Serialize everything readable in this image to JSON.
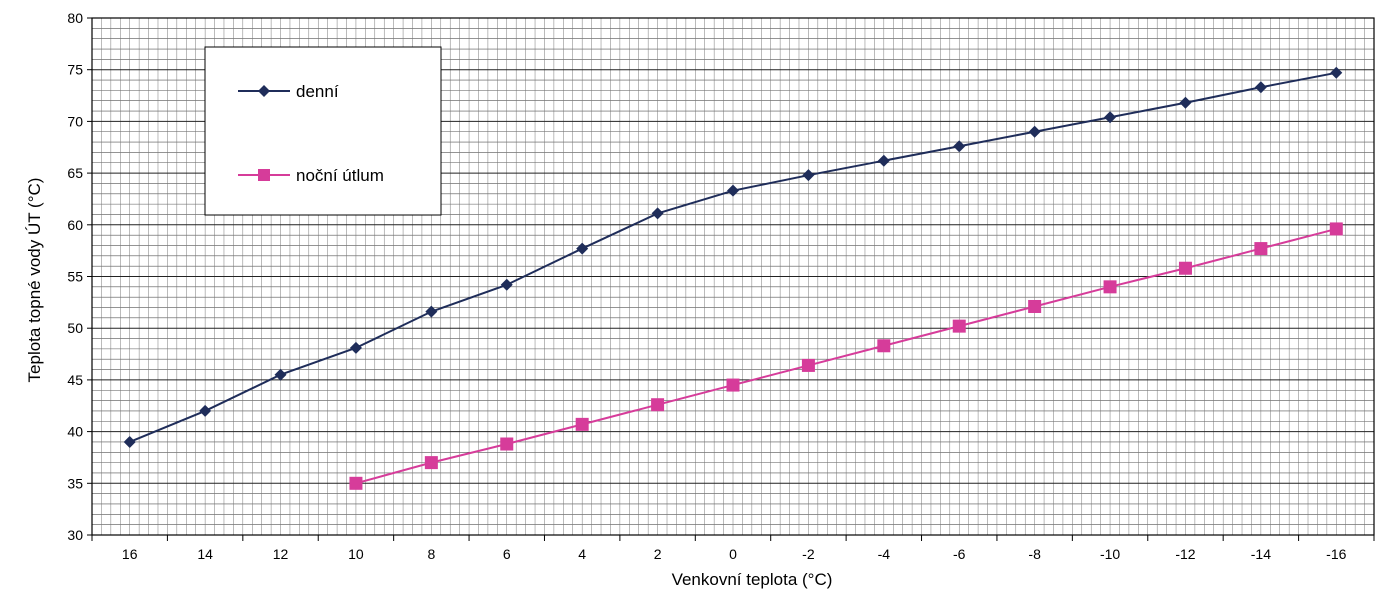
{
  "chart_data": {
    "type": "line",
    "title": "",
    "xlabel": "Venkovní teplota (°C)",
    "ylabel": "Teplota topné vody ÚT (°C)",
    "categories": [
      "16",
      "14",
      "12",
      "10",
      "8",
      "6",
      "4",
      "2",
      "0",
      "-2",
      "-4",
      "-6",
      "-8",
      "-10",
      "-12",
      "-14",
      "-16"
    ],
    "ylim": [
      30,
      80
    ],
    "yticks": [
      30,
      35,
      40,
      45,
      50,
      55,
      60,
      65,
      70,
      75,
      80
    ],
    "grid": true,
    "legend_position": "top-left",
    "series": [
      {
        "name": "denní",
        "color": "#1f2d5a",
        "marker": "diamond",
        "values": [
          39.0,
          42.0,
          45.5,
          48.1,
          51.6,
          54.2,
          57.7,
          61.1,
          63.3,
          64.8,
          66.2,
          67.6,
          69.0,
          70.4,
          71.8,
          73.3,
          74.7
        ]
      },
      {
        "name": "noční útlum",
        "color": "#d63c9a",
        "marker": "square",
        "values": [
          null,
          null,
          null,
          35.0,
          37.0,
          38.8,
          40.7,
          42.6,
          44.5,
          46.4,
          48.3,
          50.2,
          52.1,
          54.0,
          55.8,
          57.7,
          59.6
        ]
      }
    ]
  }
}
